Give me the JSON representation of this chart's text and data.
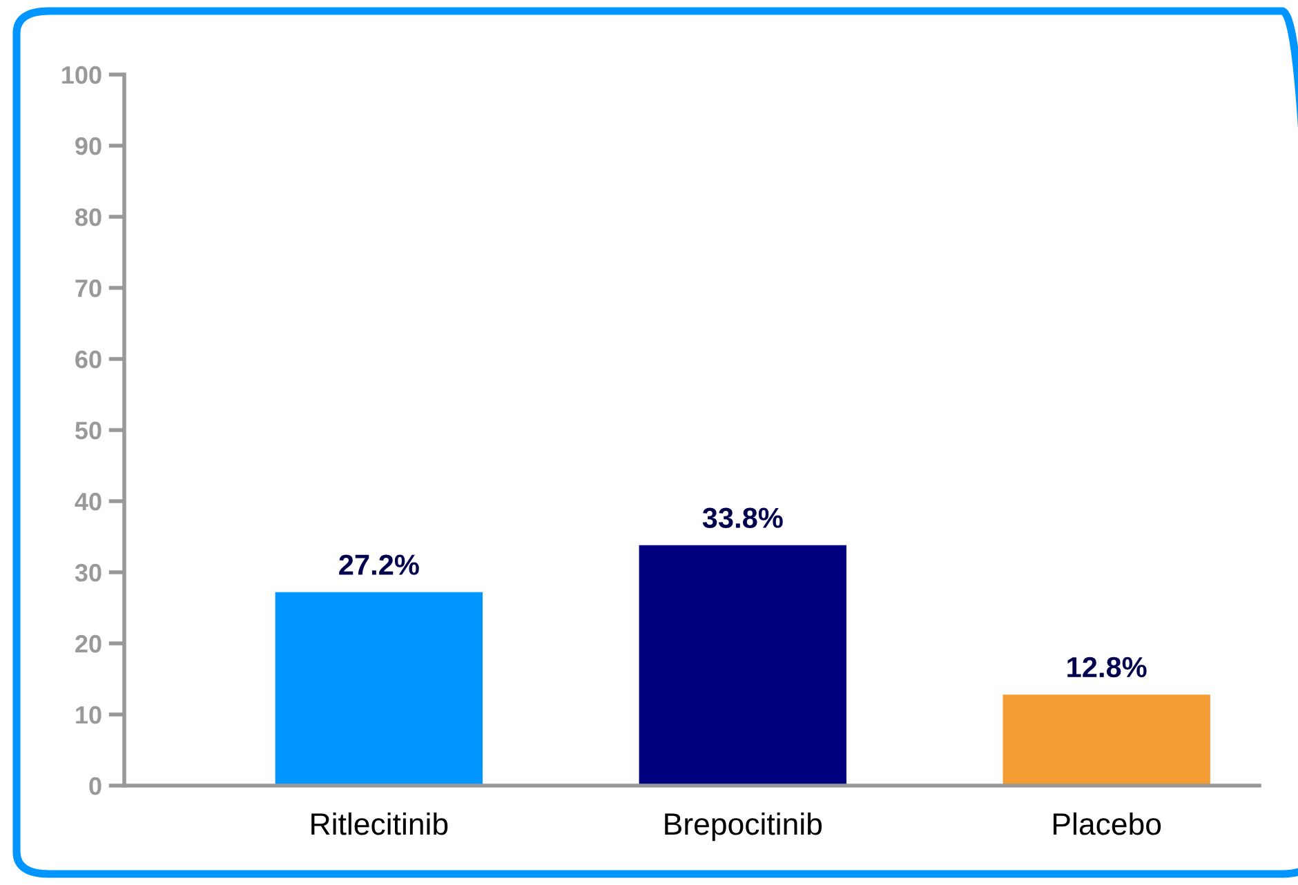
{
  "chart_data": {
    "type": "bar",
    "categories": [
      "Ritlecitinib",
      "Brepocitinib",
      "Placebo"
    ],
    "values": [
      27.2,
      33.8,
      12.8
    ],
    "colors": [
      "#0095ff",
      "#00007f",
      "#f39c34"
    ],
    "value_labels": [
      "27.2%",
      "33.8%",
      "12.8%"
    ],
    "ylim": [
      0,
      100
    ],
    "yticks": [
      0,
      10,
      20,
      30,
      40,
      50,
      60,
      70,
      80,
      90,
      100
    ],
    "grid": false,
    "legend": false
  }
}
